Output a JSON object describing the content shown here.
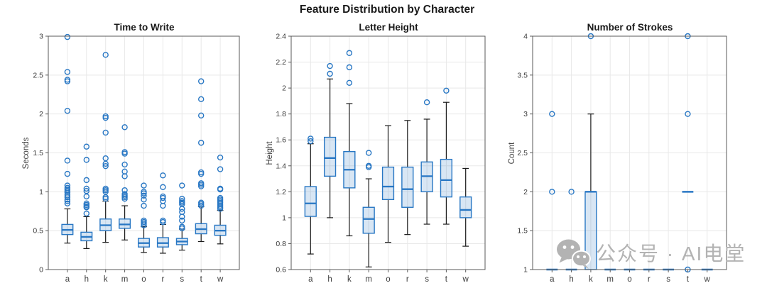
{
  "figure": {
    "suptitle": "Feature Distribution by Character"
  },
  "colors": {
    "box_edge": "#2877C4",
    "box_fill": "rgba(40,119,196,0.18)",
    "whisker": "#1A1A1A",
    "grid": "#E8E8E8",
    "axis": "#5A5A5A",
    "tick_label": "#3C3C3C",
    "title": "#1A1A1A",
    "watermark": "#B3B3B3"
  },
  "watermark": {
    "icon": "wechat-icon",
    "text": "公众号 · AI电堂"
  },
  "chart_data": [
    {
      "type": "boxplot",
      "title": "Time to Write",
      "ylabel": "Seconds",
      "ylim": [
        0,
        3
      ],
      "yticks": [
        "0",
        "0.5",
        "1",
        "1.5",
        "2",
        "2.5",
        "3"
      ],
      "grid": true,
      "categories": [
        "a",
        "h",
        "k",
        "m",
        "o",
        "r",
        "s",
        "t",
        "w"
      ],
      "boxes": [
        {
          "category": "a",
          "whislo": 0.34,
          "q1": 0.45,
          "med": 0.51,
          "q3": 0.58,
          "whishi": 0.78,
          "outliers": [
            0.85,
            0.88,
            0.9,
            0.93,
            0.96,
            0.99,
            1.01,
            1.03,
            1.05,
            1.08,
            1.23,
            1.4,
            2.04,
            2.42,
            2.44,
            2.54,
            2.99
          ]
        },
        {
          "category": "h",
          "whislo": 0.27,
          "q1": 0.37,
          "med": 0.42,
          "q3": 0.48,
          "whishi": 0.68,
          "outliers": [
            0.72,
            0.8,
            0.81,
            0.83,
            0.85,
            0.94,
            1.01,
            1.04,
            1.15,
            1.41,
            1.58
          ]
        },
        {
          "category": "k",
          "whislo": 0.35,
          "q1": 0.5,
          "med": 0.57,
          "q3": 0.65,
          "whishi": 0.88,
          "outliers": [
            0.91,
            0.93,
            1.0,
            1.02,
            1.04,
            1.33,
            1.36,
            1.43,
            1.76,
            1.95,
            1.97,
            2.76
          ]
        },
        {
          "category": "m",
          "whislo": 0.38,
          "q1": 0.53,
          "med": 0.58,
          "q3": 0.65,
          "whishi": 0.82,
          "outliers": [
            0.91,
            0.93,
            0.95,
            0.97,
            1.02,
            1.2,
            1.26,
            1.35,
            1.49,
            1.51,
            1.83
          ]
        },
        {
          "category": "o",
          "whislo": 0.22,
          "q1": 0.29,
          "med": 0.34,
          "q3": 0.4,
          "whishi": 0.55,
          "outliers": [
            0.57,
            0.59,
            0.61,
            0.63,
            0.82,
            0.9,
            0.95,
            0.98,
            1.0,
            1.08
          ]
        },
        {
          "category": "r",
          "whislo": 0.21,
          "q1": 0.29,
          "med": 0.34,
          "q3": 0.41,
          "whishi": 0.58,
          "outliers": [
            0.61,
            0.63,
            0.82,
            0.88,
            0.92,
            0.94,
            1.06,
            1.21
          ]
        },
        {
          "category": "s",
          "whislo": 0.25,
          "q1": 0.32,
          "med": 0.36,
          "q3": 0.4,
          "whishi": 0.52,
          "outliers": [
            0.53,
            0.55,
            0.63,
            0.68,
            0.74,
            0.78,
            0.84,
            0.86,
            0.88,
            0.91,
            1.08
          ]
        },
        {
          "category": "t",
          "whislo": 0.36,
          "q1": 0.46,
          "med": 0.52,
          "q3": 0.59,
          "whishi": 0.81,
          "outliers": [
            0.82,
            0.84,
            0.86,
            1.07,
            1.09,
            1.11,
            1.23,
            1.25,
            1.63,
            1.98,
            2.19,
            2.42
          ]
        },
        {
          "category": "w",
          "whislo": 0.33,
          "q1": 0.44,
          "med": 0.5,
          "q3": 0.57,
          "whishi": 0.76,
          "outliers": [
            0.78,
            0.8,
            0.82,
            0.84,
            0.86,
            0.88,
            0.9,
            0.92,
            1.03,
            1.04,
            1.29,
            1.44
          ]
        }
      ]
    },
    {
      "type": "boxplot",
      "title": "Letter Height",
      "ylabel": "Height",
      "ylim": [
        0.6,
        2.4
      ],
      "yticks": [
        "0.6",
        "0.8",
        "1",
        "1.2",
        "1.4",
        "1.6",
        "1.8",
        "2",
        "2.2",
        "2.4"
      ],
      "grid": true,
      "categories": [
        "a",
        "h",
        "k",
        "m",
        "o",
        "r",
        "s",
        "t",
        "w"
      ],
      "boxes": [
        {
          "category": "a",
          "whislo": 0.72,
          "q1": 1.01,
          "med": 1.11,
          "q3": 1.24,
          "whishi": 1.57,
          "outliers": [
            1.59,
            1.61
          ]
        },
        {
          "category": "h",
          "whislo": 1.0,
          "q1": 1.32,
          "med": 1.46,
          "q3": 1.62,
          "whishi": 2.07,
          "outliers": [
            2.11,
            2.17
          ]
        },
        {
          "category": "k",
          "whislo": 0.86,
          "q1": 1.23,
          "med": 1.37,
          "q3": 1.51,
          "whishi": 1.88,
          "outliers": [
            2.04,
            2.16,
            2.27
          ]
        },
        {
          "category": "m",
          "whislo": 0.62,
          "q1": 0.88,
          "med": 0.99,
          "q3": 1.08,
          "whishi": 1.3,
          "outliers": [
            1.39,
            1.4,
            1.5
          ]
        },
        {
          "category": "o",
          "whislo": 0.81,
          "q1": 1.14,
          "med": 1.24,
          "q3": 1.39,
          "whishi": 1.71,
          "outliers": []
        },
        {
          "category": "r",
          "whislo": 0.87,
          "q1": 1.08,
          "med": 1.22,
          "q3": 1.39,
          "whishi": 1.75,
          "outliers": []
        },
        {
          "category": "s",
          "whislo": 0.95,
          "q1": 1.2,
          "med": 1.32,
          "q3": 1.43,
          "whishi": 1.76,
          "outliers": [
            1.89
          ]
        },
        {
          "category": "t",
          "whislo": 0.95,
          "q1": 1.16,
          "med": 1.29,
          "q3": 1.45,
          "whishi": 1.89,
          "outliers": [
            1.98
          ]
        },
        {
          "category": "w",
          "whislo": 0.78,
          "q1": 1.0,
          "med": 1.06,
          "q3": 1.16,
          "whishi": 1.38,
          "outliers": []
        }
      ]
    },
    {
      "type": "boxplot",
      "title": "Number of Strokes",
      "ylabel": "Count",
      "ylim": [
        1,
        4
      ],
      "yticks": [
        "1",
        "1.5",
        "2",
        "2.5",
        "3",
        "3.5",
        "4"
      ],
      "grid": true,
      "categories": [
        "a",
        "h",
        "k",
        "m",
        "o",
        "r",
        "s",
        "t",
        "w"
      ],
      "boxes": [
        {
          "category": "a",
          "whislo": 1,
          "q1": 1,
          "med": 1,
          "q3": 1,
          "whishi": 1,
          "outliers": [
            2,
            3
          ]
        },
        {
          "category": "h",
          "whislo": 1,
          "q1": 1,
          "med": 1,
          "q3": 1,
          "whishi": 1,
          "outliers": [
            2
          ]
        },
        {
          "category": "k",
          "whislo": 1,
          "q1": 1,
          "med": 2,
          "q3": 2,
          "whishi": 3,
          "outliers": [
            4
          ]
        },
        {
          "category": "m",
          "whislo": 1,
          "q1": 1,
          "med": 1,
          "q3": 1,
          "whishi": 1,
          "outliers": []
        },
        {
          "category": "o",
          "whislo": 1,
          "q1": 1,
          "med": 1,
          "q3": 1,
          "whishi": 1,
          "outliers": []
        },
        {
          "category": "r",
          "whislo": 1,
          "q1": 1,
          "med": 1,
          "q3": 1,
          "whishi": 1,
          "outliers": []
        },
        {
          "category": "s",
          "whislo": 1,
          "q1": 1,
          "med": 1,
          "q3": 1,
          "whishi": 1,
          "outliers": []
        },
        {
          "category": "t",
          "whislo": 2,
          "q1": 2,
          "med": 2,
          "q3": 2,
          "whishi": 2,
          "outliers": [
            1,
            3,
            4
          ]
        },
        {
          "category": "w",
          "whislo": 1,
          "q1": 1,
          "med": 1,
          "q3": 1,
          "whishi": 1,
          "outliers": []
        }
      ]
    }
  ]
}
